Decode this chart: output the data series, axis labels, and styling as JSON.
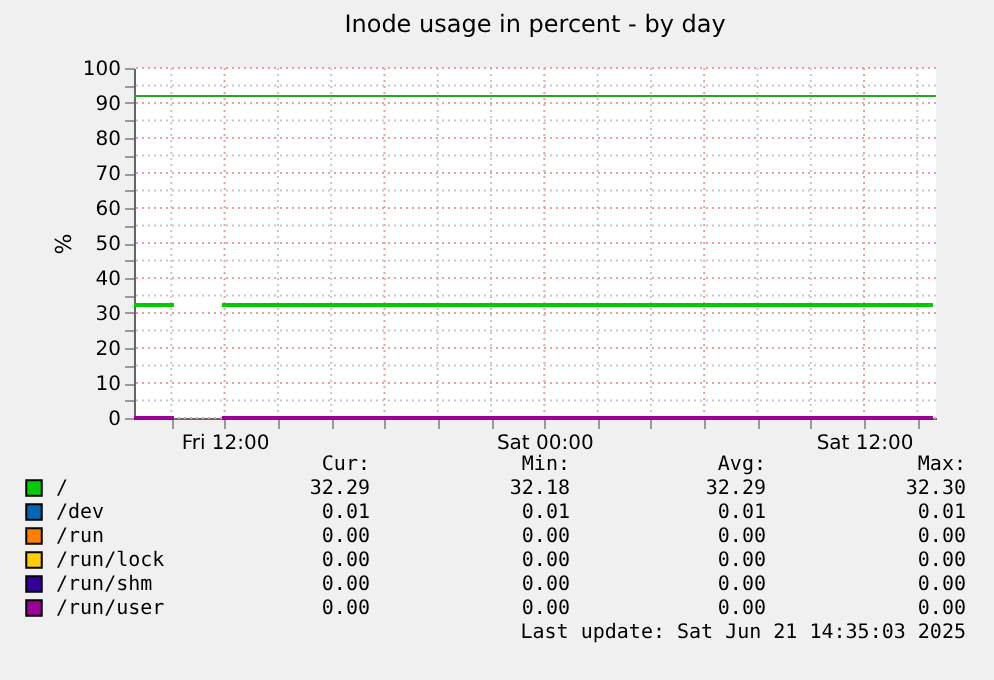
{
  "chart_data": {
    "type": "line",
    "title": "Inode usage in percent - by day",
    "ylabel": "%",
    "x": [
      "2025-06-20T08:36",
      "2025-06-20T10:06",
      "2025-06-20T11:00",
      "2025-06-20T11:54",
      "2025-06-21T14:35"
    ],
    "series": [
      {
        "name": "/",
        "color": "#00cc00",
        "values": [
          32.3,
          32.3,
          null,
          32.3,
          32.3
        ]
      },
      {
        "name": "/dev",
        "color": "#0066b3",
        "values": [
          null,
          null,
          null,
          null,
          null
        ]
      },
      {
        "name": "/run",
        "color": "#ff8000",
        "values": [
          null,
          null,
          null,
          null,
          null
        ]
      },
      {
        "name": "/run/lock",
        "color": "#ffcc00",
        "values": [
          null,
          null,
          null,
          null,
          null
        ]
      },
      {
        "name": "/run/shm",
        "color": "#330099",
        "values": [
          null,
          null,
          null,
          null,
          null
        ]
      },
      {
        "name": "/run/user",
        "color": "#990099",
        "values": [
          0,
          0,
          null,
          0,
          0
        ]
      }
    ],
    "xlim": [
      "2025-06-20T08:36",
      "2025-06-21T14:42"
    ],
    "xticks": [
      {
        "value": "2025-06-20T10:00",
        "label": null
      },
      {
        "value": "2025-06-20T12:00",
        "label": "Fri 12:00"
      },
      {
        "value": "2025-06-20T14:00",
        "label": null
      },
      {
        "value": "2025-06-20T16:00",
        "label": null
      },
      {
        "value": "2025-06-20T18:00",
        "label": null
      },
      {
        "value": "2025-06-20T20:00",
        "label": null
      },
      {
        "value": "2025-06-20T22:00",
        "label": null
      },
      {
        "value": "2025-06-21T00:00",
        "label": "Sat 00:00"
      },
      {
        "value": "2025-06-21T02:00",
        "label": null
      },
      {
        "value": "2025-06-21T04:00",
        "label": null
      },
      {
        "value": "2025-06-21T06:00",
        "label": null
      },
      {
        "value": "2025-06-21T08:00",
        "label": null
      },
      {
        "value": "2025-06-21T10:00",
        "label": null
      },
      {
        "value": "2025-06-21T12:00",
        "label": "Sat 12:00"
      },
      {
        "value": "2025-06-21T14:00",
        "label": null
      }
    ],
    "ylim": [
      0,
      100
    ],
    "yticks": [
      0,
      {
        "value": 5,
        "label": null
      },
      10,
      {
        "value": 15,
        "label": null
      },
      20,
      {
        "value": 25,
        "label": null
      },
      30,
      {
        "value": 35,
        "label": null
      },
      40,
      {
        "value": 45,
        "label": null
      },
      50,
      {
        "value": 55,
        "label": null
      },
      60,
      {
        "value": 65,
        "label": null
      },
      70,
      {
        "value": 75,
        "label": null
      },
      80,
      {
        "value": 85,
        "label": null
      },
      90,
      {
        "value": 95,
        "label": null
      },
      100
    ],
    "ref_lines": [
      {
        "axis": "y",
        "value": 92,
        "color": "#22aa22"
      }
    ],
    "grid": true,
    "legend": "bottom",
    "line_style": "solid",
    "marker": "none",
    "annotations": [
      "Cur:",
      "Min:",
      "Avg:",
      "Max:",
      "32.29",
      "32.18",
      "32.29",
      "32.30",
      "0.01",
      "0.01",
      "0.01",
      "0.01",
      "0.00",
      "0.00",
      "0.00",
      "0.00",
      "0.00",
      "0.00",
      "0.00",
      "0.00",
      "0.00",
      "0.00",
      "0.00",
      "0.00",
      "0.00",
      "0.00",
      "0.00",
      "0.00",
      "Last update: Sat Jun 21 14:35:03 2025"
    ]
  }
}
